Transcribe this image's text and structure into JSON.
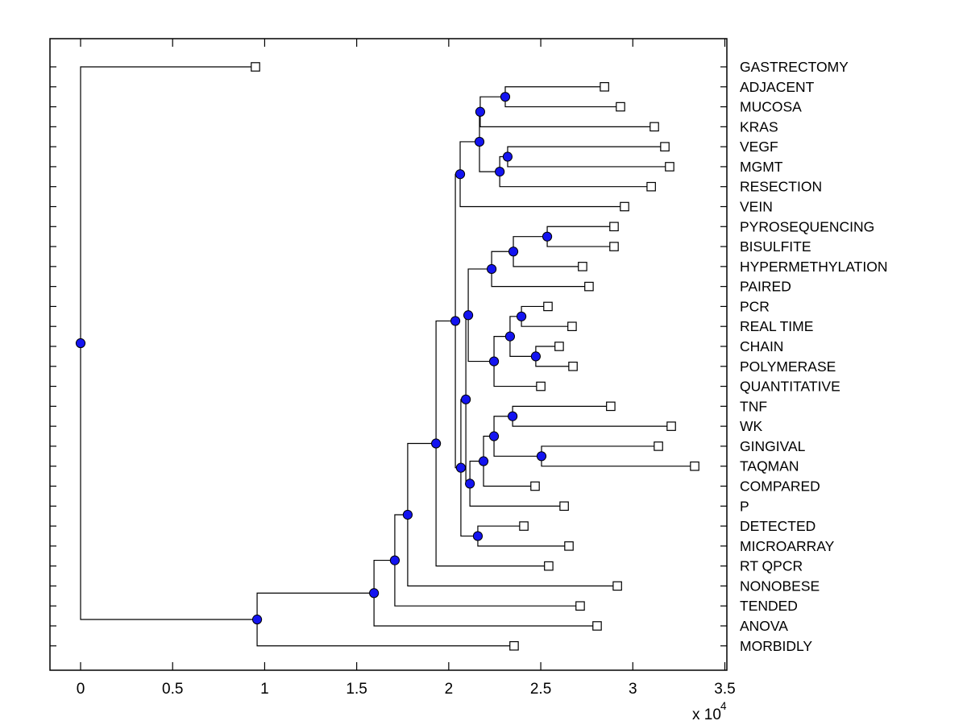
{
  "chart_data": {
    "type": "dendrogram",
    "orientation": "root-left-leaves-right",
    "title": "",
    "x_axis": {
      "tick_values": [
        0,
        5000,
        10000,
        15000,
        20000,
        25000,
        30000,
        35000
      ],
      "tick_labels": [
        "0",
        "0.5",
        "1",
        "1.5",
        "2",
        "2.5",
        "3",
        "3.5"
      ],
      "multiplier_base": "x 10",
      "multiplier_exponent": "4",
      "xlim": [
        -1660,
        35110
      ],
      "grid": false
    },
    "styles": {
      "line_color": "#000000",
      "node_fill": "#1414f0",
      "node_edge": "#000000",
      "leaf_fill": "#ffffff",
      "leaf_edge": "#000000",
      "background": "#ffffff"
    },
    "leaves": [
      {
        "label": "GASTRECTOMY",
        "value": 9500
      },
      {
        "label": "ADJACENT",
        "value": 28460
      },
      {
        "label": "MUCOSA",
        "value": 29330
      },
      {
        "label": "KRAS",
        "value": 31170
      },
      {
        "label": "VEGF",
        "value": 31740
      },
      {
        "label": "MGMT",
        "value": 32000
      },
      {
        "label": "RESECTION",
        "value": 31000
      },
      {
        "label": "VEIN",
        "value": 29550
      },
      {
        "label": "PYROSEQUENCING",
        "value": 28980
      },
      {
        "label": "BISULFITE",
        "value": 28980
      },
      {
        "label": "HYPERMETHYLATION",
        "value": 27270
      },
      {
        "label": "PAIRED",
        "value": 27620
      },
      {
        "label": "PCR",
        "value": 25390
      },
      {
        "label": "REAL TIME",
        "value": 26700
      },
      {
        "label": "CHAIN",
        "value": 26000
      },
      {
        "label": "POLYMERASE",
        "value": 26750
      },
      {
        "label": "QUANTITATIVE",
        "value": 25000
      },
      {
        "label": "TNF",
        "value": 28800
      },
      {
        "label": "WK",
        "value": 32090
      },
      {
        "label": "GINGIVAL",
        "value": 31390
      },
      {
        "label": "TAQMAN",
        "value": 33360
      },
      {
        "label": "COMPARED",
        "value": 24690
      },
      {
        "label": "P",
        "value": 26270
      },
      {
        "label": "DETECTED",
        "value": 24080
      },
      {
        "label": "MICROARRAY",
        "value": 26530
      },
      {
        "label": "RT QPCR",
        "value": 25430
      },
      {
        "label": "NONOBESE",
        "value": 29160
      },
      {
        "label": "TENDED",
        "value": 27140
      },
      {
        "label": "ANOVA",
        "value": 28060
      },
      {
        "label": "MORBIDLY",
        "value": 23550
      }
    ],
    "merges": [
      {
        "id": "M1",
        "children": [
          "ADJACENT",
          "MUCOSA"
        ],
        "value": 23070
      },
      {
        "id": "M2",
        "children": [
          "M1",
          "KRAS"
        ],
        "value": 21710
      },
      {
        "id": "M3",
        "children": [
          "VEGF",
          "MGMT"
        ],
        "value": 23200
      },
      {
        "id": "M4",
        "children": [
          "M3",
          "RESECTION"
        ],
        "value": 22770
      },
      {
        "id": "M5",
        "children": [
          "M2",
          "M4"
        ],
        "value": 21670
      },
      {
        "id": "M6",
        "children": [
          "M5",
          "VEIN"
        ],
        "value": 20620
      },
      {
        "id": "M7",
        "children": [
          "PYROSEQUENCING",
          "BISULFITE"
        ],
        "value": 25350
      },
      {
        "id": "M8",
        "children": [
          "M7",
          "HYPERMETHYLATION"
        ],
        "value": 23510
      },
      {
        "id": "M9",
        "children": [
          "M8",
          "PAIRED"
        ],
        "value": 22330
      },
      {
        "id": "M10",
        "children": [
          "PCR",
          "REAL TIME"
        ],
        "value": 23950
      },
      {
        "id": "M11",
        "children": [
          "CHAIN",
          "POLYMERASE"
        ],
        "value": 24730
      },
      {
        "id": "M12",
        "children": [
          "M10",
          "M11"
        ],
        "value": 23330
      },
      {
        "id": "M13",
        "children": [
          "M12",
          "QUANTITATIVE"
        ],
        "value": 22460
      },
      {
        "id": "M14",
        "children": [
          "M9",
          "M13"
        ],
        "value": 21060
      },
      {
        "id": "M15",
        "children": [
          "TNF",
          "WK"
        ],
        "value": 23470
      },
      {
        "id": "M16",
        "children": [
          "GINGIVAL",
          "TAQMAN"
        ],
        "value": 25040
      },
      {
        "id": "M17",
        "children": [
          "M15",
          "M16"
        ],
        "value": 22460
      },
      {
        "id": "M18",
        "children": [
          "M17",
          "COMPARED"
        ],
        "value": 21890
      },
      {
        "id": "M19",
        "children": [
          "M18",
          "P"
        ],
        "value": 21150
      },
      {
        "id": "M20",
        "children": [
          "M14",
          "M19"
        ],
        "value": 20930
      },
      {
        "id": "M21",
        "children": [
          "DETECTED",
          "MICROARRAY"
        ],
        "value": 21580
      },
      {
        "id": "M22",
        "children": [
          "M20",
          "M21"
        ],
        "value": 20660
      },
      {
        "id": "M23",
        "children": [
          "M6",
          "M22"
        ],
        "value": 20360
      },
      {
        "id": "M24",
        "children": [
          "M23",
          "RT QPCR"
        ],
        "value": 19310
      },
      {
        "id": "M25",
        "children": [
          "M24",
          "NONOBESE"
        ],
        "value": 17770
      },
      {
        "id": "M26",
        "children": [
          "M25",
          "TENDED"
        ],
        "value": 17070
      },
      {
        "id": "M27",
        "children": [
          "M26",
          "ANOVA"
        ],
        "value": 15940
      },
      {
        "id": "M28",
        "children": [
          "M27",
          "MORBIDLY"
        ],
        "value": 9590
      },
      {
        "id": "M29",
        "children": [
          "GASTRECTOMY",
          "M28"
        ],
        "value": 0
      }
    ]
  }
}
